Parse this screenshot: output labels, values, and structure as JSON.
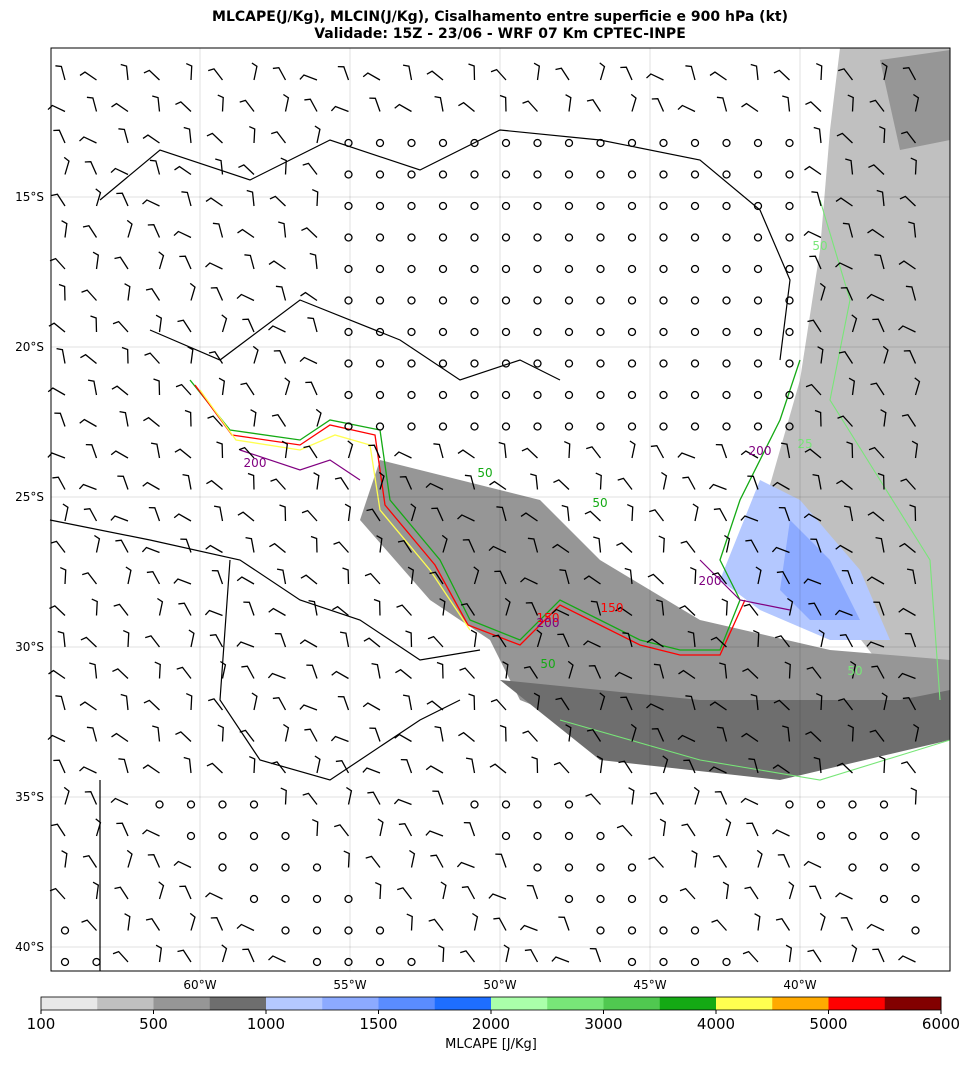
{
  "header": {
    "title": "MLCAPE(J/Kg), MLCIN(J/Kg), Cisalhamento entre superficie e 900 hPa (kt)",
    "subtitle": "Validade: 15Z - 23/06 - WRF 07 Km CPTEC-INPE"
  },
  "map": {
    "lat_labels": [
      "15°S",
      "20°S",
      "25°S",
      "30°S",
      "35°S",
      "40°S"
    ],
    "lon_labels": [
      "60°W",
      "55°W",
      "50°W",
      "45°W",
      "40°W"
    ],
    "contour_labels": [
      "50",
      "50",
      "200",
      "150",
      "150",
      "200",
      "50",
      "25",
      "50",
      "200",
      "50",
      "200"
    ]
  },
  "colorbar": {
    "label": "MLCAPE [J/Kg]",
    "ticks": [
      100,
      500,
      1000,
      1500,
      2000,
      3000,
      4000,
      5000,
      6000
    ],
    "colors": [
      "#e8e8e8",
      "#c0c0c0",
      "#969696",
      "#6e6e6e",
      "#b4c8ff",
      "#8caaff",
      "#5a8cff",
      "#1e6eff",
      "#aaffaa",
      "#78e678",
      "#50c850",
      "#14aa14",
      "#ffff50",
      "#ffaa00",
      "#ff0000",
      "#820000"
    ]
  }
}
